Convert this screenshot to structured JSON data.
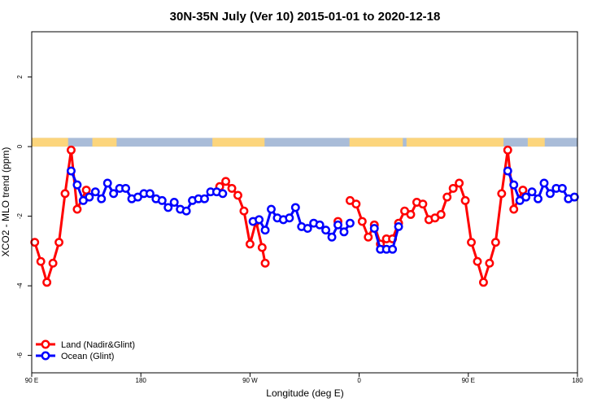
{
  "chart_data": {
    "type": "line",
    "title": "30N-35N July (Ver 10)   2015-01-01 to 2020-12-18",
    "xlabel": "Longitude (deg E)",
    "ylabel": "XCO2 - MLO trend (ppm)",
    "xlim": [
      0,
      450
    ],
    "ylim": [
      -6.5,
      3.3
    ],
    "x_ticks": [
      {
        "value": 0,
        "label": "90 E"
      },
      {
        "value": 90,
        "label": "180"
      },
      {
        "value": 180,
        "label": "90 W"
      },
      {
        "value": 270,
        "label": "0"
      },
      {
        "value": 360,
        "label": "90 E"
      },
      {
        "value": 450,
        "label": "180"
      }
    ],
    "y_ticks": [
      {
        "value": 2,
        "label": "2"
      },
      {
        "value": 0,
        "label": "0"
      },
      {
        "value": -2,
        "label": "-2"
      },
      {
        "value": -4,
        "label": "-4"
      },
      {
        "value": -6,
        "label": "-6"
      }
    ],
    "land_mask_strip": {
      "y_range": [
        0,
        0.25
      ],
      "ocean_color": "#a9bcd8",
      "land_color": "#fcd57c",
      "land_x_ranges": [
        [
          0,
          30
        ],
        [
          50,
          70
        ],
        [
          149,
          192
        ],
        [
          262,
          306
        ],
        [
          309,
          389
        ],
        [
          409,
          423
        ]
      ]
    },
    "legend": {
      "position": "bottom-left"
    },
    "series": [
      {
        "name": "Land (Nadir&Glint)",
        "color": "#ff0000",
        "points": [
          [
            2.5,
            -2.75
          ],
          [
            7.5,
            -3.3
          ],
          [
            12.5,
            -3.9
          ],
          [
            17.5,
            -3.35
          ],
          [
            22.5,
            -2.75
          ],
          [
            27.5,
            -1.35
          ],
          [
            32.5,
            -0.1
          ],
          [
            37.5,
            -1.8
          ],
          [
            45,
            -1.25
          ],
          [
            155,
            -1.15
          ],
          [
            160,
            -1.0
          ],
          [
            165,
            -1.2
          ],
          [
            170,
            -1.4
          ],
          [
            175,
            -1.85
          ],
          [
            180,
            -2.8
          ],
          [
            185,
            -2.15
          ],
          [
            190,
            -2.9
          ],
          [
            192.5,
            -3.35
          ],
          [
            252.5,
            -2.15
          ],
          [
            262.5,
            -1.55
          ],
          [
            267.5,
            -1.65
          ],
          [
            272.5,
            -2.15
          ],
          [
            277.5,
            -2.6
          ],
          [
            282.5,
            -2.25
          ],
          [
            287.5,
            -2.8
          ],
          [
            292.5,
            -2.65
          ],
          [
            297.5,
            -2.65
          ],
          [
            302.5,
            -2.2
          ],
          [
            307.5,
            -1.85
          ],
          [
            312.5,
            -1.95
          ],
          [
            317.5,
            -1.6
          ],
          [
            322.5,
            -1.65
          ],
          [
            327.5,
            -2.1
          ],
          [
            332.5,
            -2.05
          ],
          [
            337.5,
            -1.95
          ],
          [
            342.5,
            -1.45
          ],
          [
            347.5,
            -1.2
          ],
          [
            352.5,
            -1.05
          ],
          [
            357.5,
            -1.55
          ],
          [
            362.5,
            -2.75
          ],
          [
            367.5,
            -3.3
          ],
          [
            372.5,
            -3.9
          ],
          [
            377.5,
            -3.35
          ],
          [
            382.5,
            -2.75
          ],
          [
            387.5,
            -1.35
          ],
          [
            392.5,
            -0.1
          ],
          [
            397.5,
            -1.8
          ],
          [
            405,
            -1.25
          ]
        ]
      },
      {
        "name": "Ocean (Glint)",
        "color": "#0000ff",
        "points": [
          [
            32.5,
            -0.7
          ],
          [
            37.5,
            -1.1
          ],
          [
            42.5,
            -1.55
          ],
          [
            47.5,
            -1.45
          ],
          [
            52.5,
            -1.3
          ],
          [
            57.5,
            -1.5
          ],
          [
            62.5,
            -1.05
          ],
          [
            67.5,
            -1.35
          ],
          [
            72.5,
            -1.2
          ],
          [
            77.5,
            -1.2
          ],
          [
            82.5,
            -1.5
          ],
          [
            87.5,
            -1.45
          ],
          [
            92.5,
            -1.35
          ],
          [
            97.5,
            -1.35
          ],
          [
            102.5,
            -1.5
          ],
          [
            107.5,
            -1.55
          ],
          [
            112.5,
            -1.75
          ],
          [
            117.5,
            -1.6
          ],
          [
            122.5,
            -1.8
          ],
          [
            127.5,
            -1.85
          ],
          [
            132.5,
            -1.55
          ],
          [
            137.5,
            -1.5
          ],
          [
            142.5,
            -1.5
          ],
          [
            147.5,
            -1.3
          ],
          [
            152.5,
            -1.3
          ],
          [
            157.5,
            -1.35
          ],
          [
            182.5,
            -2.15
          ],
          [
            187.5,
            -2.1
          ],
          [
            192.5,
            -2.4
          ],
          [
            197.5,
            -1.8
          ],
          [
            202.5,
            -2.05
          ],
          [
            207.5,
            -2.1
          ],
          [
            212.5,
            -2.05
          ],
          [
            217.5,
            -1.75
          ],
          [
            222.5,
            -2.3
          ],
          [
            227.5,
            -2.35
          ],
          [
            232.5,
            -2.2
          ],
          [
            237.5,
            -2.25
          ],
          [
            242.5,
            -2.4
          ],
          [
            247.5,
            -2.6
          ],
          [
            252.5,
            -2.25
          ],
          [
            257.5,
            -2.45
          ],
          [
            262.5,
            -2.2
          ],
          [
            282.5,
            -2.35
          ],
          [
            287.5,
            -2.95
          ],
          [
            292.5,
            -2.95
          ],
          [
            297.5,
            -2.95
          ],
          [
            302.5,
            -2.3
          ],
          [
            392.5,
            -0.7
          ],
          [
            397.5,
            -1.1
          ],
          [
            402.5,
            -1.55
          ],
          [
            407.5,
            -1.45
          ],
          [
            412.5,
            -1.3
          ],
          [
            417.5,
            -1.5
          ],
          [
            422.5,
            -1.05
          ],
          [
            427.5,
            -1.35
          ],
          [
            432.5,
            -1.2
          ],
          [
            437.5,
            -1.2
          ],
          [
            442.5,
            -1.5
          ],
          [
            447.5,
            -1.45
          ]
        ]
      }
    ]
  }
}
